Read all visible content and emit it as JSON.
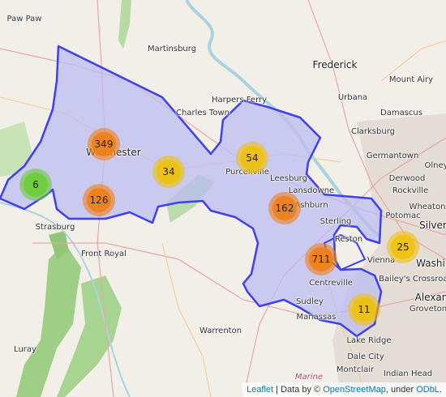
{
  "colors": {
    "small": "#6ecc39",
    "medium": "#f0c20c",
    "large": "#f18017",
    "region_stroke": "#3f3ff2",
    "region_fill": "#bcbcf2"
  },
  "places": [
    {
      "name": "Paw Paw",
      "size": "normal"
    },
    {
      "name": "Martinsburg",
      "size": "normal"
    },
    {
      "name": "Frederick",
      "size": "big"
    },
    {
      "name": "Mount Airy",
      "size": "normal"
    },
    {
      "name": "Harpers Ferry",
      "size": "normal"
    },
    {
      "name": "Urbana",
      "size": "normal"
    },
    {
      "name": "Charles Town",
      "size": "normal"
    },
    {
      "name": "Damascus",
      "size": "normal"
    },
    {
      "name": "Clarksburg",
      "size": "normal"
    },
    {
      "name": "Winchester",
      "size": "big"
    },
    {
      "name": "Germantown",
      "size": "normal"
    },
    {
      "name": "Purcellville",
      "size": "normal"
    },
    {
      "name": "Leesburg",
      "size": "normal"
    },
    {
      "name": "Derwood",
      "size": "normal"
    },
    {
      "name": "Olney",
      "size": "normal"
    },
    {
      "name": "Lansdowne",
      "size": "normal"
    },
    {
      "name": "Rockville",
      "size": "normal"
    },
    {
      "name": "Ashburn",
      "size": "normal"
    },
    {
      "name": "Wheaton",
      "size": "normal"
    },
    {
      "name": "Potomac",
      "size": "normal"
    },
    {
      "name": "Silver",
      "size": "big"
    },
    {
      "name": "Sterling",
      "size": "normal"
    },
    {
      "name": "Strasburg",
      "size": "normal"
    },
    {
      "name": "Reston",
      "size": "normal"
    },
    {
      "name": "Front Royal",
      "size": "normal"
    },
    {
      "name": "Vienna",
      "size": "normal"
    },
    {
      "name": "Washi",
      "size": "big"
    },
    {
      "name": "Bailey's Crossroad",
      "size": "normal"
    },
    {
      "name": "Centreville",
      "size": "normal"
    },
    {
      "name": "Alexan",
      "size": "big"
    },
    {
      "name": "Sudley",
      "size": "normal"
    },
    {
      "name": "Groveton",
      "size": "normal"
    },
    {
      "name": "Manassas",
      "size": "normal"
    },
    {
      "name": "Warrenton",
      "size": "normal"
    },
    {
      "name": "Luray",
      "size": "normal"
    },
    {
      "name": "Lake Ridge",
      "size": "normal"
    },
    {
      "name": "Dale City",
      "size": "normal"
    },
    {
      "name": "Montclair",
      "size": "normal"
    },
    {
      "name": "Indian Head",
      "size": "normal"
    },
    {
      "name": "Marine",
      "size": "italic"
    }
  ],
  "clusters": [
    {
      "count": "6",
      "level": "small"
    },
    {
      "count": "349",
      "level": "large"
    },
    {
      "count": "126",
      "level": "large"
    },
    {
      "count": "34",
      "level": "medium"
    },
    {
      "count": "54",
      "level": "medium"
    },
    {
      "count": "162",
      "level": "large"
    },
    {
      "count": "711",
      "level": "large"
    },
    {
      "count": "25",
      "level": "medium"
    },
    {
      "count": "11",
      "level": "medium"
    }
  ],
  "attribution": {
    "leaflet": "Leaflet",
    "sep": " | Data by © ",
    "osm": "OpenStreetMap",
    "under": ", under ",
    "odbl": "ODbL",
    "end": "."
  }
}
